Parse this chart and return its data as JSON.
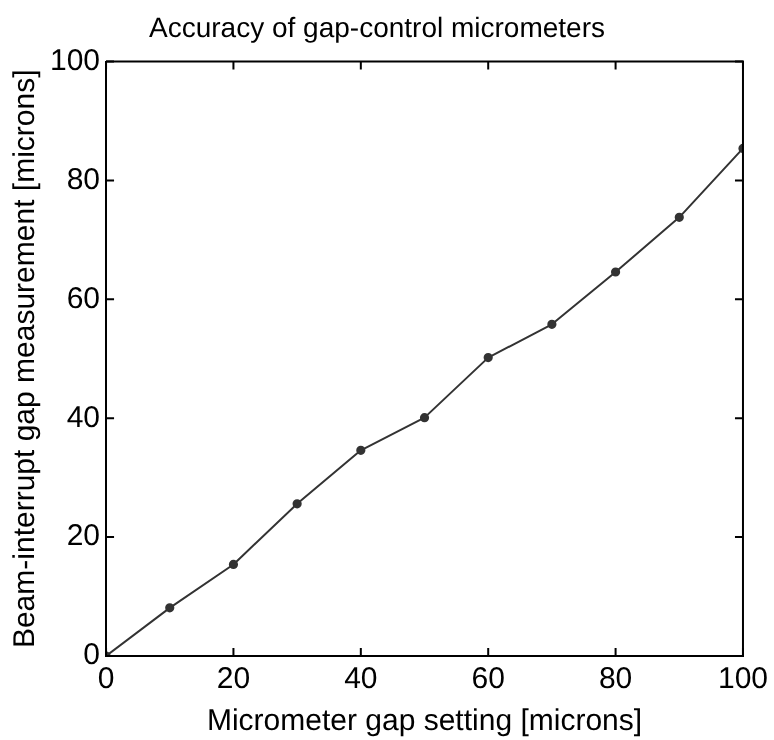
{
  "chart_data": {
    "type": "line",
    "title": "Accuracy of gap-control micrometers",
    "xlabel": "Micrometer gap setting [microns]",
    "ylabel": "Beam-interrupt gap measurement [microns]",
    "x": [
      0,
      10,
      20,
      30,
      40,
      50,
      60,
      70,
      80,
      90,
      100
    ],
    "series": [
      {
        "color": "#333333",
        "values": [
          0,
          8.1,
          15.4,
          25.6,
          34.6,
          40.1,
          50.2,
          55.8,
          64.6,
          73.8,
          85.4
        ]
      }
    ],
    "xlim": [
      0,
      100
    ],
    "ylim": [
      0,
      100
    ],
    "xticks": [
      0,
      20,
      40,
      60,
      80,
      100
    ],
    "yticks": [
      0,
      20,
      40,
      60,
      80,
      100
    ],
    "grid": false,
    "legend": false,
    "marker": "circle",
    "line_style": "solid"
  }
}
